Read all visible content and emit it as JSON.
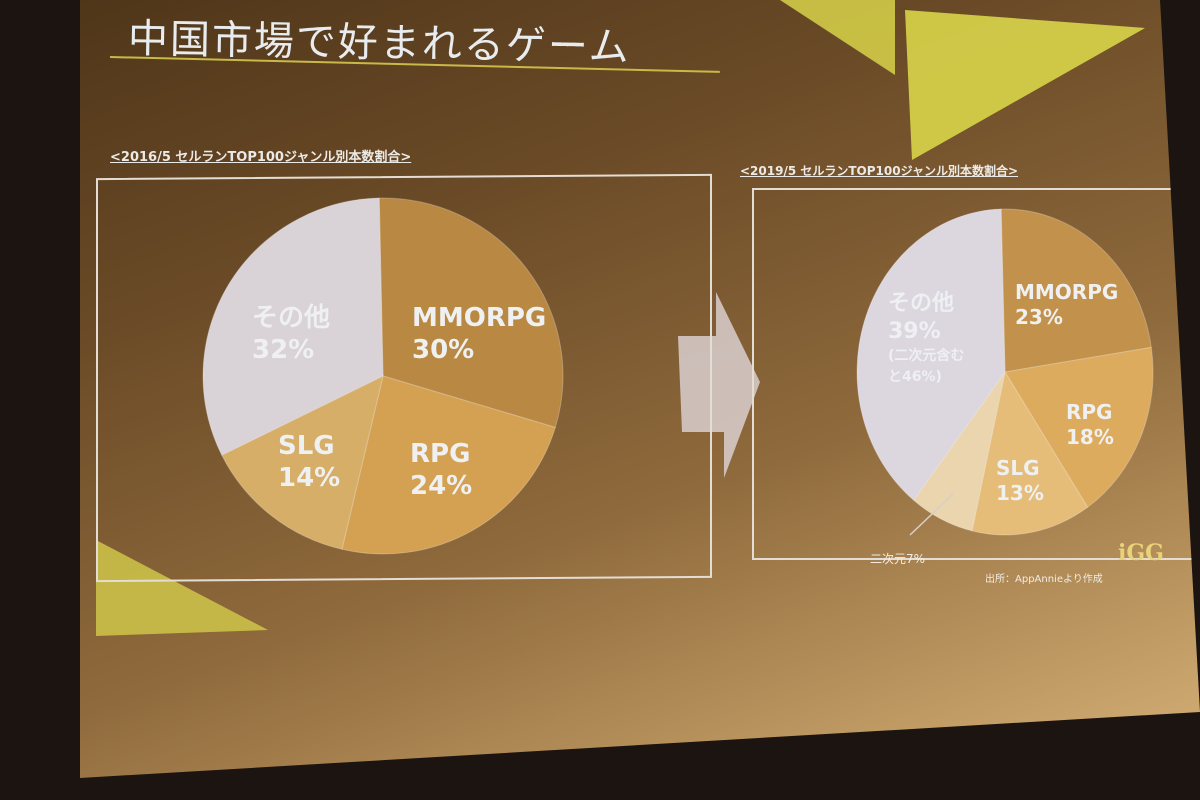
{
  "slide": {
    "title": "中国市場で好まれるゲーム",
    "source": "出所：AppAnnieより作成",
    "logo": "iGG"
  },
  "chart_data": [
    {
      "type": "pie",
      "title": "<2016/5 セルランTOP100ジャンル別本数割合>",
      "slices": [
        {
          "label": "MMORPG",
          "value": 30,
          "value_label": "30%",
          "color": "#b98944"
        },
        {
          "label": "RPG",
          "value": 24,
          "value_label": "24%",
          "color": "#d4a153"
        },
        {
          "label": "SLG",
          "value": 14,
          "value_label": "14%",
          "color": "#d6ae68"
        },
        {
          "label": "その他",
          "value": 32,
          "value_label": "32%",
          "color": "#d9d2d6"
        }
      ]
    },
    {
      "type": "pie",
      "title": "<2019/5 セルランTOP100ジャンル別本数割合>",
      "slices": [
        {
          "label": "MMORPG",
          "value": 23,
          "value_label": "23%",
          "color": "#c2914b"
        },
        {
          "label": "RPG",
          "value": 18,
          "value_label": "18%",
          "color": "#dcab5e"
        },
        {
          "label": "SLG",
          "value": 13,
          "value_label": "13%",
          "color": "#e6bd78"
        },
        {
          "label": "二次元",
          "value": 7,
          "value_label": "二次元7%",
          "color": "#ead5ae"
        },
        {
          "label": "その他",
          "value": 39,
          "value_label": "39%",
          "note": "(二次元含む",
          "note2": "と46%)",
          "color": "#dcd6de"
        }
      ]
    }
  ]
}
